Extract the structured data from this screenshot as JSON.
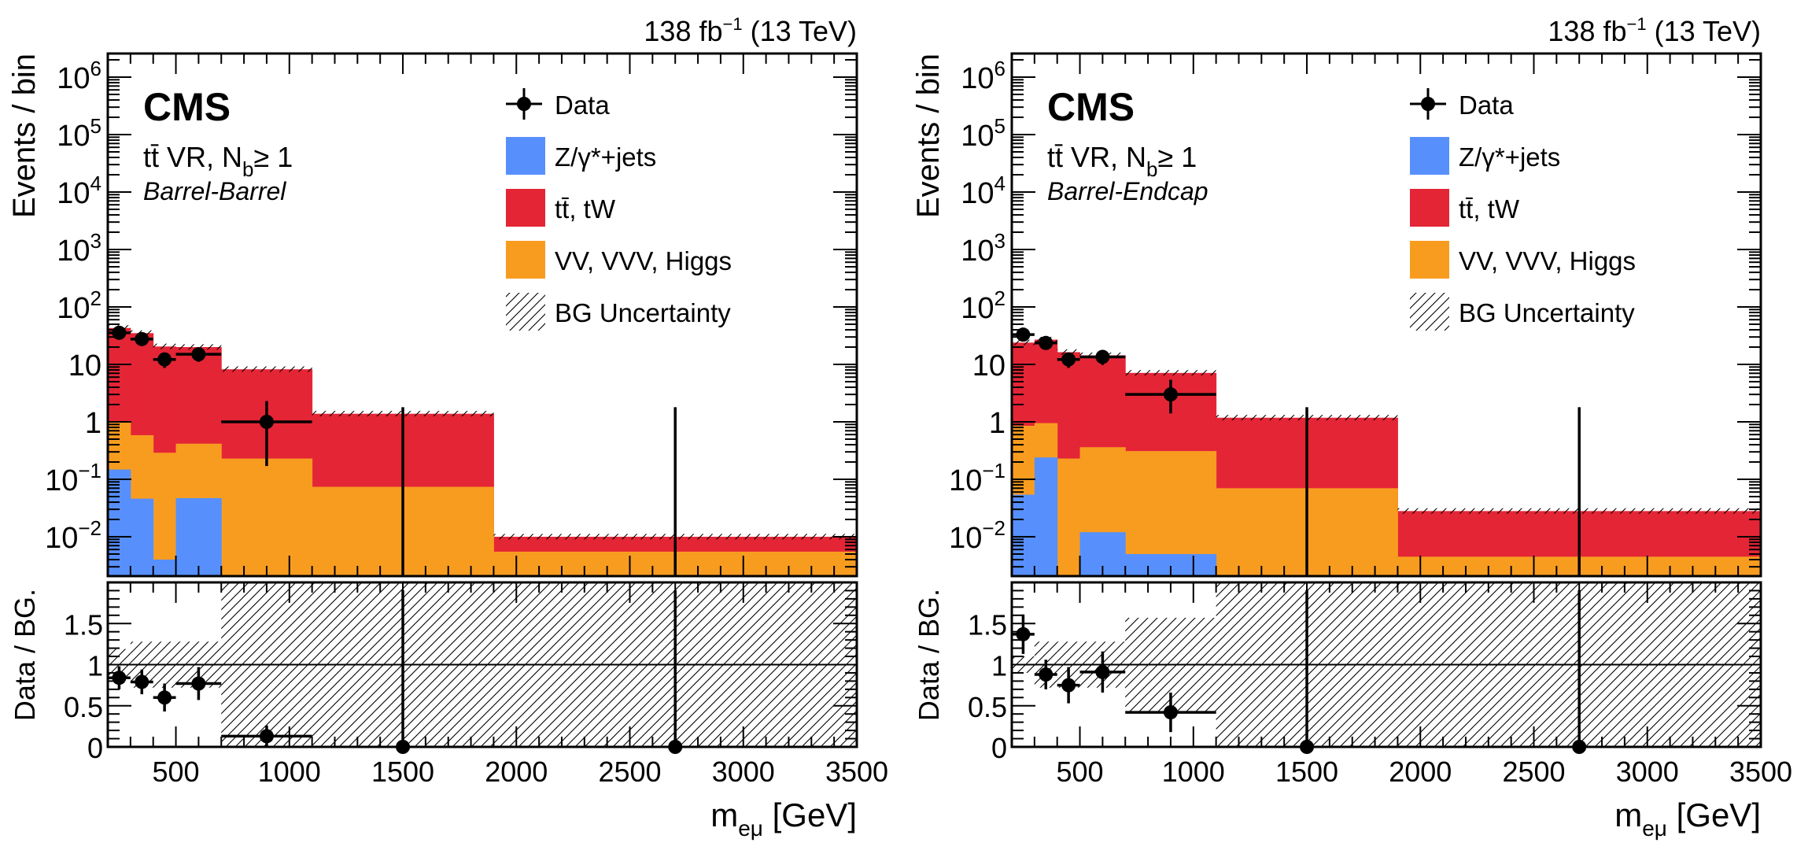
{
  "colors": {
    "zjets": "#5790fc",
    "ttbar": "#e42536",
    "vv": "#f89c20",
    "data": "#000000",
    "frame": "#000000"
  },
  "chart_data": [
    {
      "type": "bar",
      "subtype": "stacked-histogram-with-ratio",
      "panel": "left",
      "lumi_label": "138 fb⁻¹ (13 TeV)",
      "lumi_parts": {
        "pre": "138 fb",
        "sup": "−1",
        "post": " (13 TeV)"
      },
      "experiment": "CMS",
      "region_label": {
        "main": "tt̄ VR, N",
        "sub": "b",
        "post": "≥ 1"
      },
      "category_label": "Barrel-Barrel",
      "xlabel": {
        "main": "m",
        "sub": "eμ",
        "post": " [GeV]"
      },
      "ylabel": "Events / bin",
      "ratio_ylabel": "Data / BG.",
      "yscale": "log",
      "ylim": [
        0.0021,
        2500000
      ],
      "xlim": [
        200,
        3500
      ],
      "ratio_ylim": [
        0,
        2
      ],
      "xticks": [
        500,
        1000,
        1500,
        2000,
        2500,
        3000,
        3500
      ],
      "xtick_labels": [
        "500",
        "1000",
        "1500",
        "2000",
        "2500",
        "3000",
        "3500"
      ],
      "yticks": [
        {
          "value": 1000000,
          "label_base": "10",
          "label_exp": "6"
        },
        {
          "value": 100000,
          "label_base": "10",
          "label_exp": "5"
        },
        {
          "value": 10000,
          "label_base": "10",
          "label_exp": "4"
        },
        {
          "value": 1000,
          "label_base": "10",
          "label_exp": "3"
        },
        {
          "value": 100,
          "label_base": "10",
          "label_exp": "2"
        },
        {
          "value": 10,
          "label_base": "10",
          "label_exp": ""
        },
        {
          "value": 1,
          "label_base": "1",
          "label_exp": ""
        },
        {
          "value": 0.1,
          "label_base": "10",
          "label_exp": "−1"
        },
        {
          "value": 0.01,
          "label_base": "10",
          "label_exp": "−2"
        }
      ],
      "ratio_yticks": [
        {
          "value": 0,
          "label": "0"
        },
        {
          "value": 0.5,
          "label": "0.5"
        },
        {
          "value": 1,
          "label": "1"
        },
        {
          "value": 1.5,
          "label": "1.5"
        }
      ],
      "bin_edges": [
        200,
        300,
        400,
        500,
        700,
        1100,
        1900,
        3500
      ],
      "series": [
        {
          "name": "Z/γ*+jets",
          "key": "zjets",
          "values": [
            0.148,
            0.046,
            0.004,
            0.047,
            0,
            0,
            0
          ]
        },
        {
          "name": "VV, VVV, Higgs",
          "key": "vv",
          "values": [
            0.85,
            0.54,
            0.286,
            0.37,
            0.23,
            0.074,
            0.0055
          ]
        },
        {
          "name": "tt̄, tW",
          "key": "ttbar",
          "values": [
            42,
            34.4,
            20.2,
            19.6,
            8.0,
            1.31,
            0.0045
          ]
        }
      ],
      "stack_totals": [
        43,
        35,
        20.5,
        20,
        8.2,
        1.38,
        0.01
      ],
      "data": {
        "x": [
          250,
          350,
          450,
          600,
          900,
          1500,
          2700
        ],
        "xerr": [
          50,
          50,
          50,
          100,
          200,
          0,
          0
        ],
        "y": [
          35.5,
          27.6,
          12.2,
          15,
          1.0,
          0,
          0
        ],
        "yerr_low": [
          6,
          5.2,
          3.5,
          3.9,
          0.83,
          0,
          0
        ],
        "yerr_high": [
          6,
          5.2,
          3.5,
          3.9,
          1.3,
          1.8,
          1.8
        ]
      },
      "ratio": {
        "y": [
          0.84,
          0.79,
          0.6,
          0.77,
          0.13,
          0,
          0
        ],
        "yerr": [
          0.14,
          0.15,
          0.17,
          0.2,
          0.13,
          0,
          0
        ],
        "xerr_visible": [
          true,
          true,
          true,
          true,
          true,
          false,
          false
        ],
        "band_low": [
          0.81,
          0.72,
          0.72,
          0.72,
          0,
          0,
          0
        ],
        "band_high": [
          1.19,
          1.28,
          1.28,
          1.28,
          2,
          2,
          2
        ],
        "reference": 1
      },
      "legend": {
        "placement": "top-right",
        "entries": [
          {
            "label": "Data",
            "type": "marker"
          },
          {
            "label": "Z/γ*+jets",
            "type": "fill",
            "key": "zjets"
          },
          {
            "label": "tt̄, tW",
            "type": "fill",
            "key": "ttbar"
          },
          {
            "label": "VV, VVV, Higgs",
            "type": "fill",
            "key": "vv"
          },
          {
            "label": "BG Uncertainty",
            "type": "hatch"
          }
        ]
      }
    },
    {
      "type": "bar",
      "subtype": "stacked-histogram-with-ratio",
      "panel": "right",
      "lumi_label": "138 fb⁻¹ (13 TeV)",
      "lumi_parts": {
        "pre": "138 fb",
        "sup": "−1",
        "post": " (13 TeV)"
      },
      "experiment": "CMS",
      "region_label": {
        "main": "tt̄ VR, N",
        "sub": "b",
        "post": "≥ 1"
      },
      "category_label": "Barrel-Endcap",
      "xlabel": {
        "main": "m",
        "sub": "eμ",
        "post": " [GeV]"
      },
      "ylabel": "Events / bin",
      "ratio_ylabel": "Data / BG.",
      "yscale": "log",
      "ylim": [
        0.0021,
        2500000
      ],
      "xlim": [
        200,
        3500
      ],
      "ratio_ylim": [
        0,
        2
      ],
      "xticks": [
        500,
        1000,
        1500,
        2000,
        2500,
        3000,
        3500
      ],
      "xtick_labels": [
        "500",
        "1000",
        "1500",
        "2000",
        "2500",
        "3000",
        "3500"
      ],
      "yticks": [
        {
          "value": 1000000,
          "label_base": "10",
          "label_exp": "6"
        },
        {
          "value": 100000,
          "label_base": "10",
          "label_exp": "5"
        },
        {
          "value": 10000,
          "label_base": "10",
          "label_exp": "4"
        },
        {
          "value": 1000,
          "label_base": "10",
          "label_exp": "3"
        },
        {
          "value": 100,
          "label_base": "10",
          "label_exp": "2"
        },
        {
          "value": 10,
          "label_base": "10",
          "label_exp": ""
        },
        {
          "value": 1,
          "label_base": "1",
          "label_exp": ""
        },
        {
          "value": 0.1,
          "label_base": "10",
          "label_exp": "−1"
        },
        {
          "value": 0.01,
          "label_base": "10",
          "label_exp": "−2"
        }
      ],
      "ratio_yticks": [
        {
          "value": 0,
          "label": "0"
        },
        {
          "value": 0.5,
          "label": "0.5"
        },
        {
          "value": 1,
          "label": "1"
        },
        {
          "value": 1.5,
          "label": "1.5"
        }
      ],
      "bin_edges": [
        200,
        300,
        400,
        500,
        700,
        1100,
        1900,
        3500
      ],
      "series": [
        {
          "name": "Z/γ*+jets",
          "key": "zjets",
          "values": [
            0.054,
            0.24,
            0,
            0.012,
            0.005,
            0,
            0
          ]
        },
        {
          "name": "VV, VVV, Higgs",
          "key": "vv",
          "values": [
            0.8,
            0.71,
            0.23,
            0.35,
            0.305,
            0.07,
            0.0045
          ]
        },
        {
          "name": "tt̄, tW",
          "key": "ttbar",
          "values": [
            23.1,
            26,
            16.1,
            14.0,
            6.8,
            1.11,
            0.0235
          ]
        }
      ],
      "stack_totals": [
        24,
        27,
        16.3,
        14.4,
        7.1,
        1.18,
        0.028
      ],
      "data": {
        "x": [
          250,
          350,
          450,
          600,
          900,
          1500,
          2700
        ],
        "xerr": [
          50,
          50,
          50,
          100,
          200,
          0,
          0
        ],
        "y": [
          33,
          23.6,
          12.2,
          13.5,
          3.0,
          0,
          0
        ],
        "yerr_low": [
          5.7,
          4.8,
          3.5,
          3.7,
          1.6,
          0,
          0
        ],
        "yerr_high": [
          5.7,
          4.8,
          3.5,
          3.7,
          2.4,
          1.8,
          1.8
        ]
      },
      "ratio": {
        "y": [
          1.37,
          0.88,
          0.75,
          0.91,
          0.42,
          0,
          0
        ],
        "yerr": [
          0.24,
          0.18,
          0.22,
          0.25,
          0.24,
          0,
          0
        ],
        "xerr_visible": [
          true,
          true,
          true,
          true,
          true,
          false,
          false
        ],
        "band_low": [
          0.9,
          0.72,
          0.72,
          0.72,
          0.43,
          0,
          0
        ],
        "band_high": [
          1.1,
          1.28,
          1.28,
          1.28,
          1.57,
          2,
          2
        ],
        "reference": 1
      },
      "legend": {
        "placement": "top-right",
        "entries": [
          {
            "label": "Data",
            "type": "marker"
          },
          {
            "label": "Z/γ*+jets",
            "type": "fill",
            "key": "zjets"
          },
          {
            "label": "tt̄, tW",
            "type": "fill",
            "key": "ttbar"
          },
          {
            "label": "VV, VVV, Higgs",
            "type": "fill",
            "key": "vv"
          },
          {
            "label": "BG Uncertainty",
            "type": "hatch"
          }
        ]
      }
    }
  ]
}
